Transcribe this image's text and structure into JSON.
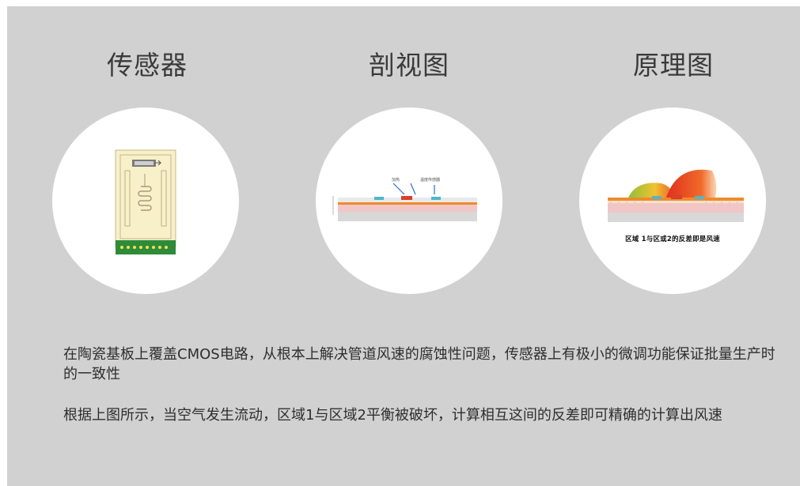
{
  "columns": [
    {
      "title": "传感器"
    },
    {
      "title": "剖视图",
      "labels": [
        "加热",
        "温度传感器"
      ]
    },
    {
      "title": "原理图",
      "caption": "区域 1与区或2的反差即是风速"
    }
  ],
  "paragraphs": [
    "在陶瓷基板上覆盖CMOS电路，从根本上解决管道风速的腐蚀性问题，传感器上有极小的微调功能保证批量生产时的一致性",
    "根据上图所示，当空气发生流动，区域1与区域2平衡被破坏，计算相互这间的反差即可精确的计算出风速"
  ],
  "colors": {
    "panel": "#d1d1d1",
    "sensor_board": "#f7f0c8",
    "sensor_pads": "#2e8b3a",
    "heat_red": "#e0301e",
    "heat_yellow": "#f1c232",
    "substrate_pink": "#f1c6c6",
    "layer_orange": "#f08a2c"
  },
  "icons": [
    "sensor-chip-icon",
    "cross-section-diagram",
    "heat-flow-diagram"
  ]
}
